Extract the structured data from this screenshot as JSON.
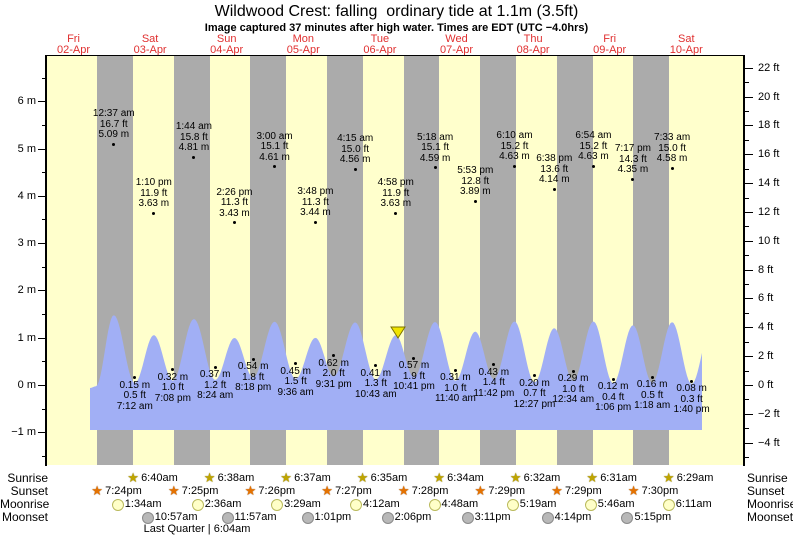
{
  "title": "Wildwood Crest: falling  ordinary tide at 1.1m (3.5ft)",
  "subtitle": "Image captured 37 minutes after high water. Times are EDT (UTC −4.0hrs)",
  "days": [
    {
      "name": "Fri",
      "date": "02-Apr"
    },
    {
      "name": "Sat",
      "date": "03-Apr"
    },
    {
      "name": "Sun",
      "date": "04-Apr"
    },
    {
      "name": "Mon",
      "date": "05-Apr"
    },
    {
      "name": "Tue",
      "date": "06-Apr"
    },
    {
      "name": "Wed",
      "date": "07-Apr"
    },
    {
      "name": "Thu",
      "date": "08-Apr"
    },
    {
      "name": "Fri",
      "date": "09-Apr"
    },
    {
      "name": "Sat",
      "date": "10-Apr"
    }
  ],
  "chart_data": {
    "type": "area",
    "title": "Wildwood Crest: falling  ordinary tide at 1.1m (3.5ft)",
    "y_axis_left": {
      "unit": "m",
      "min": -1,
      "max": 6,
      "step": 1
    },
    "y_axis_right": {
      "unit": "ft",
      "min": -4,
      "max": 22,
      "step": 2
    },
    "grid": false,
    "night_shading": true,
    "current_time_marker": {
      "day": 4,
      "after_high_time": "4:58 pm",
      "offset_minutes": 37,
      "shape": "triangle-down"
    },
    "tides": [
      {
        "day": 1,
        "type": "high",
        "time": "12:37 am",
        "ft": "16.7 ft",
        "m": "5.09 m"
      },
      {
        "day": 1,
        "type": "low",
        "time": "7:12 am",
        "ft": "0.5 ft",
        "m": "0.15 m"
      },
      {
        "day": 1,
        "type": "high",
        "time": "1:10 pm",
        "ft": "11.9 ft",
        "m": "3.63 m"
      },
      {
        "day": 1,
        "type": "low",
        "time": "7:08 pm",
        "ft": "1.0 ft",
        "m": "0.32 m"
      },
      {
        "day": 2,
        "type": "high",
        "time": "1:44 am",
        "ft": "15.8 ft",
        "m": "4.81 m"
      },
      {
        "day": 2,
        "type": "low",
        "time": "8:24 am",
        "ft": "1.2 ft",
        "m": "0.37 m"
      },
      {
        "day": 2,
        "type": "high",
        "time": "2:26 pm",
        "ft": "11.3 ft",
        "m": "3.43 m"
      },
      {
        "day": 2,
        "type": "low",
        "time": "8:18 pm",
        "ft": "1.8 ft",
        "m": "0.54 m"
      },
      {
        "day": 3,
        "type": "high",
        "time": "3:00 am",
        "ft": "15.1 ft",
        "m": "4.61 m"
      },
      {
        "day": 3,
        "type": "low",
        "time": "9:36 am",
        "ft": "1.5 ft",
        "m": "0.45 m"
      },
      {
        "day": 3,
        "type": "high",
        "time": "3:48 pm",
        "ft": "11.3 ft",
        "m": "3.44 m"
      },
      {
        "day": 3,
        "type": "low",
        "time": "9:31 pm",
        "ft": "2.0 ft",
        "m": "0.62 m"
      },
      {
        "day": 4,
        "type": "high",
        "time": "4:15 am",
        "ft": "15.0 ft",
        "m": "4.56 m"
      },
      {
        "day": 4,
        "type": "low",
        "time": "10:43 am",
        "ft": "1.3 ft",
        "m": "0.41 m"
      },
      {
        "day": 4,
        "type": "high",
        "time": "4:58 pm",
        "ft": "11.9 ft",
        "m": "3.63 m"
      },
      {
        "day": 4,
        "type": "low",
        "time": "10:41 pm",
        "ft": "1.9 ft",
        "m": "0.57 m"
      },
      {
        "day": 5,
        "type": "high",
        "time": "5:18 am",
        "ft": "15.1 ft",
        "m": "4.59 m"
      },
      {
        "day": 5,
        "type": "low",
        "time": "11:40 am",
        "ft": "1.0 ft",
        "m": "0.31 m"
      },
      {
        "day": 5,
        "type": "high",
        "time": "5:53 pm",
        "ft": "12.8 ft",
        "m": "3.89 m"
      },
      {
        "day": 5,
        "type": "low",
        "time": "11:42 pm",
        "ft": "1.4 ft",
        "m": "0.43 m"
      },
      {
        "day": 6,
        "type": "high",
        "time": "6:10 am",
        "ft": "15.2 ft",
        "m": "4.63 m"
      },
      {
        "day": 6,
        "type": "low",
        "time": "12:27 pm",
        "ft": "0.7 ft",
        "m": "0.20 m"
      },
      {
        "day": 6,
        "type": "high",
        "time": "6:38 pm",
        "ft": "13.6 ft",
        "m": "4.14 m"
      },
      {
        "day": 7,
        "type": "low",
        "time": "12:34 am",
        "ft": "1.0 ft",
        "m": "0.29 m"
      },
      {
        "day": 7,
        "type": "high",
        "time": "6:54 am",
        "ft": "15.2 ft",
        "m": "4.63 m"
      },
      {
        "day": 7,
        "type": "low",
        "time": "1:06 pm",
        "ft": "0.4 ft",
        "m": "0.12 m"
      },
      {
        "day": 7,
        "type": "high",
        "time": "7:17 pm",
        "ft": "14.3 ft",
        "m": "4.35 m"
      },
      {
        "day": 8,
        "type": "low",
        "time": "1:18 am",
        "ft": "0.5 ft",
        "m": "0.16 m"
      },
      {
        "day": 8,
        "type": "high",
        "time": "7:33 am",
        "ft": "15.0 ft",
        "m": "4.58 m"
      },
      {
        "day": 8,
        "type": "low",
        "time": "1:40 pm",
        "ft": "0.3 ft",
        "m": "0.08 m"
      }
    ]
  },
  "astro": {
    "rows": [
      {
        "label": "Sunrise",
        "icon": "sunrise-star-icon",
        "events": [
          {
            "day": 1,
            "time": "6:40am"
          },
          {
            "day": 2,
            "time": "6:38am"
          },
          {
            "day": 3,
            "time": "6:37am"
          },
          {
            "day": 4,
            "time": "6:35am"
          },
          {
            "day": 5,
            "time": "6:34am"
          },
          {
            "day": 6,
            "time": "6:32am"
          },
          {
            "day": 7,
            "time": "6:31am"
          },
          {
            "day": 8,
            "time": "6:29am"
          }
        ]
      },
      {
        "label": "Sunset",
        "icon": "sunset-star-icon",
        "events": [
          {
            "day": 0,
            "time": "7:24pm"
          },
          {
            "day": 1,
            "time": "7:25pm"
          },
          {
            "day": 2,
            "time": "7:26pm"
          },
          {
            "day": 3,
            "time": "7:27pm"
          },
          {
            "day": 4,
            "time": "7:28pm"
          },
          {
            "day": 5,
            "time": "7:29pm"
          },
          {
            "day": 6,
            "time": "7:29pm"
          },
          {
            "day": 7,
            "time": "7:30pm"
          }
        ]
      },
      {
        "label": "Moonrise",
        "icon": "moonrise-icon",
        "events": [
          {
            "day": 1,
            "time": "1:34am"
          },
          {
            "day": 2,
            "time": "2:36am"
          },
          {
            "day": 3,
            "time": "3:29am"
          },
          {
            "day": 4,
            "time": "4:12am"
          },
          {
            "day": 5,
            "time": "4:48am"
          },
          {
            "day": 6,
            "time": "5:19am"
          },
          {
            "day": 7,
            "time": "5:46am"
          },
          {
            "day": 8,
            "time": "6:11am"
          }
        ]
      },
      {
        "label": "Moonset",
        "icon": "moonset-icon",
        "events": [
          {
            "day": 1,
            "time": "10:57am"
          },
          {
            "day": 2,
            "time": "11:57am"
          },
          {
            "day": 3,
            "time": "1:01pm"
          },
          {
            "day": 4,
            "time": "2:06pm"
          },
          {
            "day": 5,
            "time": "3:11pm"
          },
          {
            "day": 6,
            "time": "4:14pm"
          },
          {
            "day": 7,
            "time": "5:15pm"
          }
        ]
      }
    ],
    "moon_phase": "Last Quarter | 6:04am"
  },
  "colors": {
    "plot_background": "#ffffcc",
    "night_band": "#ababab",
    "tide_area": "#a1aff5",
    "header_red": "#e03030",
    "sunrise_star": "#bfa500",
    "sunset_star": "#e57200",
    "moonrise_fill": "#ffffc8",
    "moonrise_border": "#b9b95a",
    "moonset_fill": "#b8b8b8",
    "moonset_border": "#8a8a8a",
    "marker_fill": "#f0e400",
    "marker_border": "#7a7000"
  }
}
